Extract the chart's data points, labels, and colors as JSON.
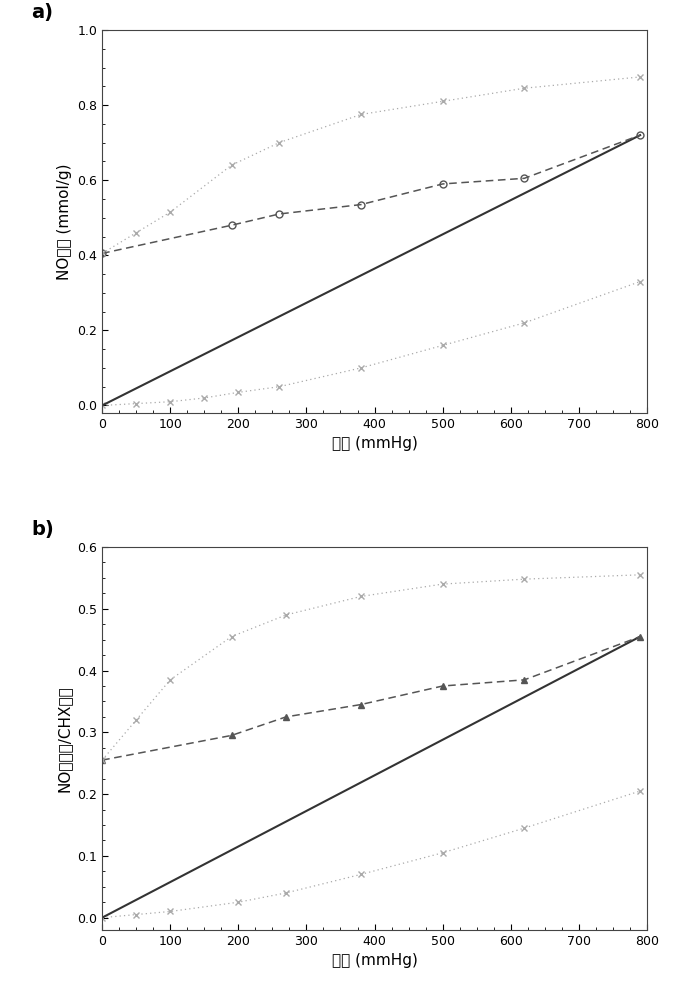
{
  "panel_a": {
    "ylabel": "NO浓度 (mmol/g)",
    "xlabel": "压力 (mmHg)",
    "xlim": [
      0,
      800
    ],
    "ylim": [
      -0.02,
      1.0
    ],
    "yticks": [
      0.0,
      0.2,
      0.4,
      0.6,
      0.8,
      1.0
    ],
    "xticks": [
      0,
      100,
      200,
      300,
      400,
      500,
      600,
      700,
      800
    ],
    "series": [
      {
        "x": [
          0,
          50,
          100,
          150,
          200,
          260,
          380,
          500,
          620,
          790
        ],
        "y": [
          0.0,
          0.005,
          0.01,
          0.02,
          0.035,
          0.05,
          0.1,
          0.16,
          0.22,
          0.33
        ],
        "color": "#aaaaaa",
        "linestyle": "dotted",
        "marker": "x",
        "markersize": 4,
        "linewidth": 0.9
      },
      {
        "x": [
          0,
          790
        ],
        "y": [
          0.0,
          0.72
        ],
        "color": "#333333",
        "linestyle": "solid",
        "marker": "None",
        "markersize": 0,
        "linewidth": 1.5
      },
      {
        "x": [
          0,
          190,
          260,
          380,
          500,
          620,
          790
        ],
        "y": [
          0.405,
          0.48,
          0.51,
          0.535,
          0.59,
          0.605,
          0.72
        ],
        "color": "#555555",
        "linestyle": "dashed",
        "marker": "o",
        "markersize": 5,
        "linewidth": 1.1
      },
      {
        "x": [
          0,
          50,
          100,
          190,
          260,
          380,
          500,
          620,
          790
        ],
        "y": [
          0.405,
          0.46,
          0.515,
          0.64,
          0.7,
          0.775,
          0.81,
          0.845,
          0.875
        ],
        "color": "#aaaaaa",
        "linestyle": "dotted",
        "marker": "x",
        "markersize": 4,
        "linewidth": 0.9
      }
    ]
  },
  "panel_b": {
    "ylabel": "NO分子数/CHX分子",
    "xlabel": "压力 (mmHg)",
    "xlim": [
      0,
      800
    ],
    "ylim": [
      -0.02,
      0.6
    ],
    "yticks": [
      0.0,
      0.1,
      0.2,
      0.3,
      0.4,
      0.5,
      0.6
    ],
    "xticks": [
      0,
      100,
      200,
      300,
      400,
      500,
      600,
      700,
      800
    ],
    "series": [
      {
        "x": [
          0,
          50,
          100,
          200,
          270,
          380,
          500,
          620,
          790
        ],
        "y": [
          0.0,
          0.005,
          0.01,
          0.025,
          0.04,
          0.07,
          0.105,
          0.145,
          0.205
        ],
        "color": "#aaaaaa",
        "linestyle": "dotted",
        "marker": "x",
        "markersize": 4,
        "linewidth": 0.9
      },
      {
        "x": [
          0,
          790
        ],
        "y": [
          0.0,
          0.455
        ],
        "color": "#333333",
        "linestyle": "solid",
        "marker": "None",
        "markersize": 0,
        "linewidth": 1.5
      },
      {
        "x": [
          0,
          190,
          270,
          380,
          500,
          620,
          790
        ],
        "y": [
          0.255,
          0.295,
          0.325,
          0.345,
          0.375,
          0.385,
          0.455
        ],
        "color": "#555555",
        "linestyle": "dashed",
        "marker": "^",
        "markersize": 5,
        "linewidth": 1.1
      },
      {
        "x": [
          0,
          50,
          100,
          190,
          270,
          380,
          500,
          620,
          790
        ],
        "y": [
          0.255,
          0.32,
          0.385,
          0.455,
          0.49,
          0.52,
          0.54,
          0.548,
          0.555
        ],
        "color": "#aaaaaa",
        "linestyle": "dotted",
        "marker": "x",
        "markersize": 4,
        "linewidth": 0.9
      }
    ]
  },
  "label_a": "a)",
  "label_b": "b)",
  "background": "#ffffff"
}
